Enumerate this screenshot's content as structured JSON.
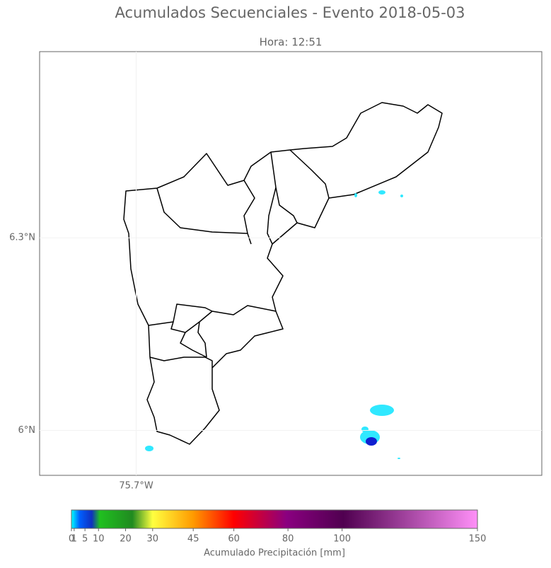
{
  "title": "Acumulados Secuenciales - Evento 2018-05-03",
  "subtitle": "Hora: 12:51",
  "map": {
    "xlim": [
      -75.85,
      -75.07
    ],
    "ylim": [
      5.93,
      6.59
    ],
    "xticks": [
      {
        "value": -75.7,
        "label": "75.7°W"
      }
    ],
    "yticks": [
      {
        "value": 6.3,
        "label": "6.3°N"
      },
      {
        "value": 6.0,
        "label": "6°N"
      }
    ]
  },
  "colorbar": {
    "lim": [
      0,
      150
    ],
    "ticks": [
      0,
      1,
      5,
      10,
      20,
      30,
      45,
      60,
      80,
      100,
      150
    ],
    "label": "Acumulado Precipitación [mm]"
  }
}
